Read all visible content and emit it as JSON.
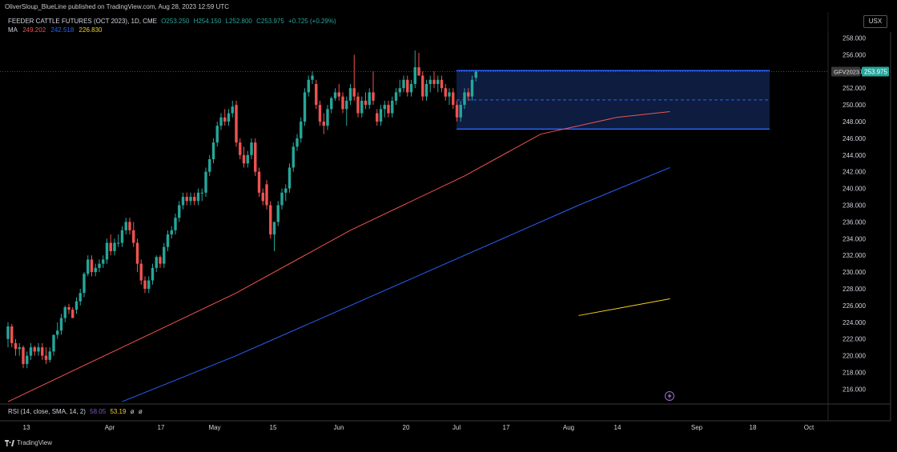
{
  "header": {
    "publisher_line": "OliverSloup_BlueLine published on TradingView.com, Aug 28, 2023 12:59 UTC",
    "currency_button": "USX"
  },
  "legend": {
    "symbol_line": "FEEDER CATTLE FUTURES (OCT 2023), 1D, CME",
    "ohlc": {
      "o": "O253.250",
      "h": "H254.150",
      "l": "L252.800",
      "c": "C253.975",
      "change": "+0.725 (+0.29%)"
    },
    "ma_label": "MA",
    "ma_values": [
      "249.202",
      "242.518",
      "226.830"
    ]
  },
  "price_axis": {
    "ticks": [
      "258.000",
      "256.000",
      "254.000",
      "252.000",
      "250.000",
      "248.000",
      "246.000",
      "244.000",
      "242.000",
      "240.000",
      "238.000",
      "236.000",
      "234.000",
      "232.000",
      "230.000",
      "228.000",
      "226.000",
      "224.000",
      "222.000",
      "220.000",
      "218.000",
      "216.000"
    ],
    "ticker_tag": "GFV2023",
    "last_price_tag": "253.975"
  },
  "time_axis": {
    "labels": [
      "13",
      "Apr",
      "17",
      "May",
      "15",
      "Jun",
      "20",
      "Jul",
      "17",
      "Aug",
      "14",
      "Sep",
      "18",
      "Oct"
    ]
  },
  "rsi": {
    "label": "RSI (14, close, SMA, 14, 2)",
    "value1": "58.05",
    "value2": "53.19",
    "extra": [
      "ø",
      "ø"
    ]
  },
  "footer": {
    "brand": "TradingView"
  },
  "colors": {
    "background": "#000000",
    "up": "#26a69a",
    "down": "#ef5350",
    "ma_fast": "#ef5350",
    "ma_mid": "#2962ff",
    "ma_slow": "#f5d020",
    "range_box_fill": "#0d1c3f",
    "range_box_border": "#2962ff",
    "last_price_bg": "#26a69a",
    "ticker_tag_bg": "#3a3a3a"
  },
  "chart_data": {
    "type": "candlestick",
    "ylim": [
      215,
      259
    ],
    "annotations": [
      {
        "type": "range_box",
        "x_start": "Jul 1",
        "x_end": "Aug 31",
        "y_top": 254.1,
        "y_bottom": 247.1,
        "midline": 250.6
      }
    ],
    "candles": [
      {
        "o": 222,
        "h": 224,
        "l": 221,
        "c": 223.5
      },
      {
        "o": 223.5,
        "h": 223.8,
        "l": 221,
        "c": 221.5
      },
      {
        "o": 221.5,
        "h": 222,
        "l": 220,
        "c": 220.8
      },
      {
        "o": 220.8,
        "h": 221.5,
        "l": 220,
        "c": 221
      },
      {
        "o": 221,
        "h": 221.2,
        "l": 218.5,
        "c": 219
      },
      {
        "o": 219,
        "h": 220.5,
        "l": 218.5,
        "c": 220
      },
      {
        "o": 220,
        "h": 221.5,
        "l": 219.5,
        "c": 221
      },
      {
        "o": 221,
        "h": 221.2,
        "l": 220,
        "c": 220.5
      },
      {
        "o": 220.5,
        "h": 221.5,
        "l": 220,
        "c": 221
      },
      {
        "o": 221,
        "h": 221.5,
        "l": 219.5,
        "c": 220
      },
      {
        "o": 220,
        "h": 221,
        "l": 219,
        "c": 219.5
      },
      {
        "o": 219.5,
        "h": 221,
        "l": 219.2,
        "c": 220.5
      },
      {
        "o": 220.5,
        "h": 222.5,
        "l": 220,
        "c": 222.5
      },
      {
        "o": 222.5,
        "h": 224,
        "l": 222,
        "c": 223
      },
      {
        "o": 223,
        "h": 225,
        "l": 222.5,
        "c": 224.5
      },
      {
        "o": 224.5,
        "h": 226,
        "l": 224,
        "c": 225.8
      },
      {
        "o": 225.8,
        "h": 226.2,
        "l": 225,
        "c": 225.5
      },
      {
        "o": 225.5,
        "h": 225.8,
        "l": 224.5,
        "c": 224.5
      },
      {
        "o": 225.5,
        "h": 227,
        "l": 225,
        "c": 226.5
      },
      {
        "o": 226.5,
        "h": 228,
        "l": 226,
        "c": 227.5
      },
      {
        "o": 227.5,
        "h": 230,
        "l": 227,
        "c": 229.8
      },
      {
        "o": 229.8,
        "h": 232,
        "l": 229.5,
        "c": 231.5
      },
      {
        "o": 231.5,
        "h": 232,
        "l": 229.5,
        "c": 230
      },
      {
        "o": 230,
        "h": 231,
        "l": 229.5,
        "c": 230.5
      },
      {
        "o": 230.5,
        "h": 231.5,
        "l": 230,
        "c": 231
      },
      {
        "o": 231,
        "h": 232,
        "l": 230.5,
        "c": 231.5
      },
      {
        "o": 231.5,
        "h": 234,
        "l": 231,
        "c": 233.5
      },
      {
        "o": 233.5,
        "h": 234.5,
        "l": 232,
        "c": 232.5
      },
      {
        "o": 232.5,
        "h": 234,
        "l": 232,
        "c": 233.5
      },
      {
        "o": 233.5,
        "h": 234.5,
        "l": 233,
        "c": 233.5
      },
      {
        "o": 233.5,
        "h": 235.5,
        "l": 233,
        "c": 235
      },
      {
        "o": 235,
        "h": 236.5,
        "l": 234.5,
        "c": 236
      },
      {
        "o": 236,
        "h": 236.5,
        "l": 234.5,
        "c": 235
      },
      {
        "o": 235,
        "h": 236,
        "l": 233,
        "c": 233.5
      },
      {
        "o": 233.5,
        "h": 234,
        "l": 230,
        "c": 231
      },
      {
        "o": 231,
        "h": 231.5,
        "l": 228.5,
        "c": 229
      },
      {
        "o": 229,
        "h": 229.5,
        "l": 227.5,
        "c": 228
      },
      {
        "o": 228,
        "h": 229.5,
        "l": 227.5,
        "c": 229
      },
      {
        "o": 229,
        "h": 231,
        "l": 228.5,
        "c": 230.5
      },
      {
        "o": 230.5,
        "h": 232,
        "l": 230,
        "c": 231.8
      },
      {
        "o": 231.8,
        "h": 232,
        "l": 230.5,
        "c": 231
      },
      {
        "o": 231,
        "h": 233.5,
        "l": 230.5,
        "c": 233
      },
      {
        "o": 233,
        "h": 235,
        "l": 232.5,
        "c": 234.5
      },
      {
        "o": 234.5,
        "h": 235.5,
        "l": 234,
        "c": 235
      },
      {
        "o": 235,
        "h": 237,
        "l": 234.5,
        "c": 236.5
      },
      {
        "o": 236.5,
        "h": 238.5,
        "l": 236,
        "c": 238
      },
      {
        "o": 238,
        "h": 239.5,
        "l": 237.5,
        "c": 239
      },
      {
        "o": 239,
        "h": 239.5,
        "l": 238,
        "c": 238.5
      },
      {
        "o": 238.5,
        "h": 239.5,
        "l": 238,
        "c": 239
      },
      {
        "o": 239,
        "h": 239.5,
        "l": 238,
        "c": 238.5
      },
      {
        "o": 238.5,
        "h": 240,
        "l": 238,
        "c": 239.5
      },
      {
        "o": 239.5,
        "h": 240,
        "l": 238.5,
        "c": 239.5
      },
      {
        "o": 239.5,
        "h": 242.5,
        "l": 239,
        "c": 242
      },
      {
        "o": 242,
        "h": 244,
        "l": 241.5,
        "c": 243.5
      },
      {
        "o": 243.5,
        "h": 246,
        "l": 243,
        "c": 245.5
      },
      {
        "o": 245.5,
        "h": 248,
        "l": 245,
        "c": 247.5
      },
      {
        "o": 247.5,
        "h": 249,
        "l": 247,
        "c": 248.5
      },
      {
        "o": 248.5,
        "h": 249.5,
        "l": 247.5,
        "c": 248
      },
      {
        "o": 248,
        "h": 249.5,
        "l": 247.5,
        "c": 249
      },
      {
        "o": 249,
        "h": 250.5,
        "l": 248.5,
        "c": 249.8
      },
      {
        "o": 250,
        "h": 250.5,
        "l": 245,
        "c": 245.5
      },
      {
        "o": 245.5,
        "h": 246,
        "l": 243.5,
        "c": 244
      },
      {
        "o": 244,
        "h": 245,
        "l": 242.5,
        "c": 243
      },
      {
        "o": 243,
        "h": 244.5,
        "l": 242.5,
        "c": 244
      },
      {
        "o": 244,
        "h": 246,
        "l": 243.5,
        "c": 245.5
      },
      {
        "o": 245.5,
        "h": 246,
        "l": 241.5,
        "c": 242
      },
      {
        "o": 242,
        "h": 242.5,
        "l": 239,
        "c": 239.5
      },
      {
        "o": 239.5,
        "h": 240,
        "l": 238,
        "c": 238.5
      },
      {
        "o": 240.5,
        "h": 241,
        "l": 237.5,
        "c": 238
      },
      {
        "o": 238,
        "h": 238.5,
        "l": 234,
        "c": 234.5
      },
      {
        "o": 234.5,
        "h": 236,
        "l": 232.5,
        "c": 236
      },
      {
        "o": 236,
        "h": 238.5,
        "l": 235.5,
        "c": 238
      },
      {
        "o": 238,
        "h": 240,
        "l": 237.5,
        "c": 239.5
      },
      {
        "o": 239.5,
        "h": 240.5,
        "l": 238.5,
        "c": 240
      },
      {
        "o": 240,
        "h": 243,
        "l": 239.5,
        "c": 242.5
      },
      {
        "o": 242.5,
        "h": 245.5,
        "l": 242,
        "c": 245
      },
      {
        "o": 245,
        "h": 246.5,
        "l": 244.5,
        "c": 246
      },
      {
        "o": 246,
        "h": 248.5,
        "l": 245.5,
        "c": 248
      },
      {
        "o": 248,
        "h": 252,
        "l": 247.5,
        "c": 251.5
      },
      {
        "o": 251.5,
        "h": 253.5,
        "l": 251,
        "c": 253
      },
      {
        "o": 253,
        "h": 254,
        "l": 252.5,
        "c": 253.5
      },
      {
        "o": 252.5,
        "h": 253,
        "l": 249.5,
        "c": 250
      },
      {
        "o": 250,
        "h": 250.5,
        "l": 247.5,
        "c": 248
      },
      {
        "o": 248,
        "h": 249,
        "l": 246.5,
        "c": 247.5
      },
      {
        "o": 247.5,
        "h": 250,
        "l": 247,
        "c": 249.5
      },
      {
        "o": 249.5,
        "h": 251,
        "l": 249,
        "c": 250.8
      },
      {
        "o": 250.8,
        "h": 252,
        "l": 250.5,
        "c": 251.5
      },
      {
        "o": 251.5,
        "h": 252.5,
        "l": 250.5,
        "c": 251
      },
      {
        "o": 251,
        "h": 251.5,
        "l": 249,
        "c": 249.5
      },
      {
        "o": 249.5,
        "h": 251,
        "l": 247.5,
        "c": 250.5
      },
      {
        "o": 250.5,
        "h": 252.5,
        "l": 250,
        "c": 252
      },
      {
        "o": 252,
        "h": 256,
        "l": 250.5,
        "c": 251
      },
      {
        "o": 251,
        "h": 251.5,
        "l": 248.5,
        "c": 249
      },
      {
        "o": 249,
        "h": 251,
        "l": 248.5,
        "c": 250.5
      },
      {
        "o": 250.5,
        "h": 251.5,
        "l": 249.5,
        "c": 250
      },
      {
        "o": 250,
        "h": 252,
        "l": 249.5,
        "c": 251.5
      },
      {
        "o": 251.5,
        "h": 254,
        "l": 250,
        "c": 250.5
      },
      {
        "o": 249,
        "h": 249.5,
        "l": 247.5,
        "c": 248
      },
      {
        "o": 248,
        "h": 250,
        "l": 247.5,
        "c": 249.5
      },
      {
        "o": 249.5,
        "h": 250.5,
        "l": 248.5,
        "c": 250
      },
      {
        "o": 250,
        "h": 250.5,
        "l": 248.5,
        "c": 249
      },
      {
        "o": 249,
        "h": 251,
        "l": 248.5,
        "c": 250.5
      },
      {
        "o": 250.5,
        "h": 252,
        "l": 250,
        "c": 251.5
      },
      {
        "o": 251.5,
        "h": 253,
        "l": 251,
        "c": 252
      },
      {
        "o": 252,
        "h": 253.5,
        "l": 251.5,
        "c": 253
      },
      {
        "o": 253,
        "h": 253.5,
        "l": 251,
        "c": 251.5
      },
      {
        "o": 251.5,
        "h": 253,
        "l": 251,
        "c": 252.5
      },
      {
        "o": 252.5,
        "h": 256.5,
        "l": 252,
        "c": 254.5
      },
      {
        "o": 254.5,
        "h": 256.2,
        "l": 253.5,
        "c": 253.5
      },
      {
        "o": 253.5,
        "h": 254,
        "l": 250.5,
        "c": 251
      },
      {
        "o": 251,
        "h": 253,
        "l": 250.5,
        "c": 252.5
      },
      {
        "o": 252.5,
        "h": 253.5,
        "l": 251.5,
        "c": 253
      },
      {
        "o": 253,
        "h": 254,
        "l": 252,
        "c": 252.5
      },
      {
        "o": 252.5,
        "h": 253.5,
        "l": 251.5,
        "c": 253
      },
      {
        "o": 253,
        "h": 253.5,
        "l": 251.5,
        "c": 252
      },
      {
        "o": 252,
        "h": 252.5,
        "l": 250.5,
        "c": 251
      },
      {
        "o": 251,
        "h": 252,
        "l": 250,
        "c": 251.5
      },
      {
        "o": 251.5,
        "h": 252,
        "l": 249.5,
        "c": 250
      },
      {
        "o": 250,
        "h": 250.5,
        "l": 248,
        "c": 248.5
      },
      {
        "o": 248.5,
        "h": 250.5,
        "l": 248,
        "c": 250
      },
      {
        "o": 250,
        "h": 252,
        "l": 249.5,
        "c": 251.5
      },
      {
        "o": 251.5,
        "h": 252,
        "l": 250.5,
        "c": 251
      },
      {
        "o": 251,
        "h": 253.5,
        "l": 250.5,
        "c": 253
      },
      {
        "o": 253.25,
        "h": 254.15,
        "l": 252.8,
        "c": 253.975
      }
    ],
    "ma_fast": [
      [
        0,
        214.5
      ],
      [
        30,
        221
      ],
      [
        60,
        227.5
      ],
      [
        90,
        235
      ],
      [
        120,
        241.5
      ],
      [
        140,
        246.5
      ],
      [
        160,
        248.5
      ],
      [
        174,
        249.2
      ]
    ],
    "ma_mid": [
      [
        30,
        214.5
      ],
      [
        60,
        220
      ],
      [
        90,
        226
      ],
      [
        120,
        232
      ],
      [
        150,
        238
      ],
      [
        174,
        242.5
      ]
    ],
    "ma_slow": [
      [
        150,
        224.8
      ],
      [
        174,
        226.8
      ]
    ]
  }
}
